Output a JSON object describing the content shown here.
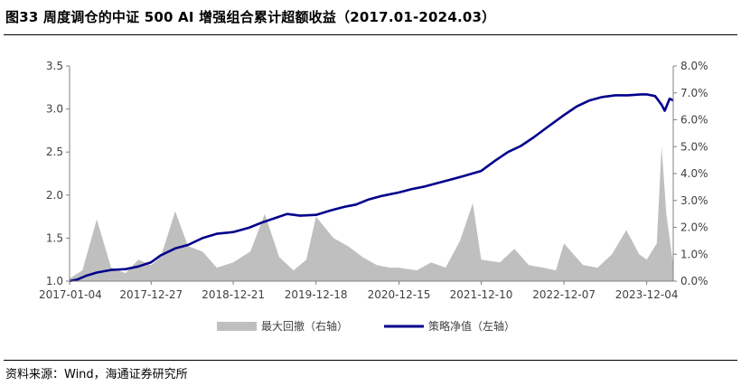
{
  "header": {
    "title": "图33 周度调仓的中证 500 AI 增强组合累计超额收益（2017.01-2024.03）"
  },
  "footer": {
    "source": "资料来源：Wind，海通证券研究所"
  },
  "chart_data": {
    "type": "line",
    "title": "",
    "x_tick_labels": [
      "2017-01-04",
      "2017-12-27",
      "2018-12-21",
      "2019-12-18",
      "2020-12-15",
      "2021-12-10",
      "2022-12-07",
      "2023-12-04"
    ],
    "x_range": [
      "2017-01-04",
      "2024-03-29"
    ],
    "y_left": {
      "ylim": [
        1.0,
        3.5
      ],
      "ticks": [
        "1.0",
        "1.5",
        "2.0",
        "2.5",
        "3.0",
        "3.5"
      ]
    },
    "y_right": {
      "ylim": [
        0.0,
        8.0
      ],
      "ticks": [
        "0.0%",
        "1.0%",
        "2.0%",
        "3.0%",
        "4.0%",
        "5.0%",
        "6.0%",
        "7.0%",
        "8.0%"
      ]
    },
    "grid": false,
    "legend": "bottom",
    "series": [
      {
        "name": "最大回撤（右轴）",
        "type": "area",
        "axis": "right",
        "color": "#bfbfbf",
        "x": [
          "2017-01-04",
          "2017-03-01",
          "2017-05-03",
          "2017-07-05",
          "2017-09-06",
          "2017-11-01",
          "2017-12-27",
          "2018-02-07",
          "2018-04-11",
          "2018-06-06",
          "2018-08-08",
          "2018-10-10",
          "2018-12-21",
          "2019-03-06",
          "2019-05-08",
          "2019-07-10",
          "2019-09-11",
          "2019-11-06",
          "2019-12-18",
          "2020-03-04",
          "2020-05-06",
          "2020-07-08",
          "2020-09-09",
          "2020-11-04",
          "2020-12-15",
          "2021-03-03",
          "2021-05-05",
          "2021-07-07",
          "2021-09-08",
          "2021-11-03",
          "2021-12-10",
          "2022-03-02",
          "2022-05-04",
          "2022-07-06",
          "2022-09-07",
          "2022-11-02",
          "2022-12-07",
          "2023-03-01",
          "2023-05-03",
          "2023-07-05",
          "2023-09-06",
          "2023-11-01",
          "2023-12-04",
          "2024-01-17",
          "2024-02-07",
          "2024-02-28",
          "2024-03-29"
        ],
        "values": [
          0.1,
          0.4,
          2.3,
          0.5,
          0.3,
          0.8,
          0.6,
          0.9,
          2.6,
          1.3,
          1.1,
          0.5,
          0.7,
          1.1,
          2.5,
          0.9,
          0.4,
          0.8,
          2.4,
          1.6,
          1.3,
          0.9,
          0.6,
          0.5,
          0.5,
          0.4,
          0.7,
          0.5,
          1.5,
          2.9,
          0.8,
          0.7,
          1.2,
          0.6,
          0.5,
          0.4,
          1.4,
          0.6,
          0.5,
          1.0,
          1.9,
          1.0,
          0.8,
          1.4,
          5.0,
          2.5,
          0.6
        ]
      },
      {
        "name": "策略净值（左轴）",
        "type": "line",
        "axis": "left",
        "color": "#00008b",
        "x": [
          "2017-01-04",
          "2017-02-08",
          "2017-03-15",
          "2017-05-03",
          "2017-07-05",
          "2017-09-06",
          "2017-11-01",
          "2017-12-27",
          "2018-02-07",
          "2018-04-11",
          "2018-06-06",
          "2018-08-08",
          "2018-10-10",
          "2018-12-21",
          "2019-02-27",
          "2019-04-24",
          "2019-06-19",
          "2019-08-14",
          "2019-10-09",
          "2019-12-18",
          "2020-02-19",
          "2020-04-15",
          "2020-06-10",
          "2020-08-05",
          "2020-09-30",
          "2020-12-15",
          "2021-02-10",
          "2021-04-07",
          "2021-06-02",
          "2021-07-28",
          "2021-09-22",
          "2021-12-10",
          "2022-02-09",
          "2022-04-06",
          "2022-06-01",
          "2022-07-27",
          "2022-09-21",
          "2022-12-07",
          "2023-02-01",
          "2023-03-29",
          "2023-05-24",
          "2023-07-19",
          "2023-09-13",
          "2023-11-08",
          "2023-12-04",
          "2024-01-10",
          "2024-02-07",
          "2024-02-21",
          "2024-03-13",
          "2024-03-29"
        ],
        "values": [
          1.0,
          1.02,
          1.06,
          1.1,
          1.13,
          1.14,
          1.17,
          1.22,
          1.3,
          1.38,
          1.42,
          1.5,
          1.55,
          1.57,
          1.62,
          1.68,
          1.73,
          1.78,
          1.76,
          1.77,
          1.82,
          1.86,
          1.89,
          1.95,
          1.99,
          2.03,
          2.07,
          2.1,
          2.14,
          2.18,
          2.22,
          2.28,
          2.4,
          2.5,
          2.57,
          2.67,
          2.78,
          2.93,
          3.03,
          3.1,
          3.14,
          3.16,
          3.16,
          3.17,
          3.17,
          3.15,
          3.05,
          2.98,
          3.12,
          3.1
        ]
      }
    ]
  }
}
